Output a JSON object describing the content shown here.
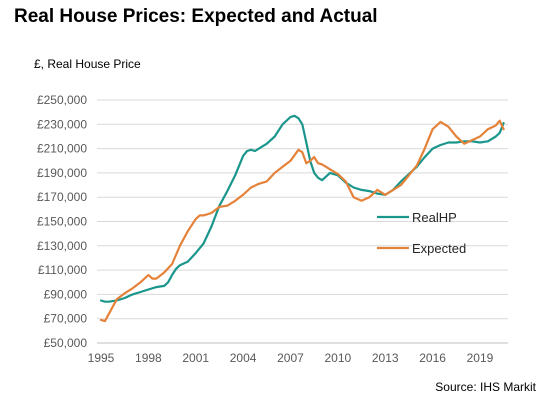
{
  "title": "Real House Prices: Expected and Actual",
  "source": "Source: IHS Markit",
  "colors": {
    "RealHP": "#1a968c",
    "Expected": "#e5823a",
    "grid": "#d9d9d9",
    "axis_text": "#595959"
  },
  "chart_data": {
    "type": "line",
    "title": "Real House Prices: Expected and Actual",
    "xlabel": "",
    "ylabel": "£, Real House Price",
    "xlim": [
      1995,
      2020.6
    ],
    "ylim": [
      50000,
      250000
    ],
    "grid": true,
    "legend": "right",
    "y_tick_labels": [
      "£50,000",
      "£70,000",
      "£90,000",
      "£110,000",
      "£130,000",
      "£150,000",
      "£170,000",
      "£190,000",
      "£210,000",
      "£230,000",
      "£250,000"
    ],
    "y_ticks": [
      50000,
      70000,
      90000,
      110000,
      130000,
      150000,
      170000,
      190000,
      210000,
      230000,
      250000
    ],
    "x_tick_labels": [
      "1995",
      "1998",
      "2001",
      "2004",
      "2007",
      "2010",
      "2013",
      "2016",
      "2019"
    ],
    "x_ticks": [
      1995,
      1998,
      2001,
      2004,
      2007,
      2010,
      2013,
      2016,
      2019
    ],
    "series": [
      {
        "name": "RealHP",
        "x": [
          1995,
          1995.25,
          1995.5,
          1995.75,
          1996,
          1996.5,
          1997,
          1997.5,
          1998,
          1998.5,
          1999,
          1999.25,
          1999.5,
          1999.75,
          2000,
          2000.5,
          2001,
          2001.5,
          2002,
          2002.5,
          2003,
          2003.5,
          2004,
          2004.25,
          2004.5,
          2004.75,
          2005,
          2005.5,
          2006,
          2006.5,
          2007,
          2007.25,
          2007.5,
          2007.75,
          2008,
          2008.25,
          2008.5,
          2008.75,
          2009,
          2009.5,
          2010,
          2010.5,
          2011,
          2011.5,
          2012,
          2012.5,
          2013,
          2013.5,
          2014,
          2014.5,
          2015,
          2015.5,
          2016,
          2016.5,
          2017,
          2017.5,
          2018,
          2018.5,
          2019,
          2019.5,
          2020,
          2020.25,
          2020.5
        ],
        "values": [
          85000,
          84000,
          84000,
          84500,
          85000,
          87000,
          90000,
          92000,
          94000,
          96000,
          97000,
          100000,
          106000,
          111000,
          114000,
          117000,
          124000,
          132000,
          146000,
          163000,
          175000,
          188000,
          204000,
          208000,
          209000,
          208000,
          210000,
          214000,
          220000,
          230000,
          236000,
          237000,
          235000,
          230000,
          215000,
          200000,
          190000,
          186000,
          184000,
          190000,
          188000,
          182000,
          178000,
          176000,
          175000,
          173000,
          172000,
          176000,
          183000,
          189000,
          195000,
          203000,
          210000,
          213000,
          215000,
          215000,
          216000,
          216000,
          215000,
          216000,
          220000,
          223000,
          231000
        ]
      },
      {
        "name": "Expected",
        "x": [
          1995,
          1995.25,
          1995.5,
          1995.75,
          1996,
          1996.5,
          1997,
          1997.5,
          1998,
          1998.25,
          1998.5,
          1999,
          1999.5,
          2000,
          2000.5,
          2001,
          2001.25,
          2001.5,
          2002,
          2002.5,
          2003,
          2003.5,
          2004,
          2004.5,
          2005,
          2005.5,
          2006,
          2006.5,
          2007,
          2007.5,
          2007.75,
          2008,
          2008.25,
          2008.5,
          2008.75,
          2009,
          2009.5,
          2010,
          2010.5,
          2011,
          2011.5,
          2012,
          2012.5,
          2013,
          2013.5,
          2014,
          2014.5,
          2015,
          2015.5,
          2016,
          2016.5,
          2017,
          2017.5,
          2018,
          2018.5,
          2019,
          2019.5,
          2020,
          2020.25,
          2020.5
        ],
        "values": [
          69000,
          68000,
          74000,
          80000,
          86000,
          91000,
          95000,
          100000,
          106000,
          103000,
          103000,
          108000,
          115000,
          130000,
          142000,
          152000,
          155000,
          155000,
          157000,
          162000,
          163000,
          167000,
          172000,
          178000,
          181000,
          183000,
          190000,
          195000,
          200000,
          209000,
          207000,
          198000,
          200000,
          203000,
          198000,
          197000,
          193000,
          189000,
          183000,
          170000,
          167000,
          170000,
          176000,
          172000,
          176000,
          180000,
          188000,
          196000,
          210000,
          226000,
          232000,
          228000,
          220000,
          214000,
          217000,
          220000,
          226000,
          229000,
          233000,
          226000
        ]
      }
    ]
  }
}
